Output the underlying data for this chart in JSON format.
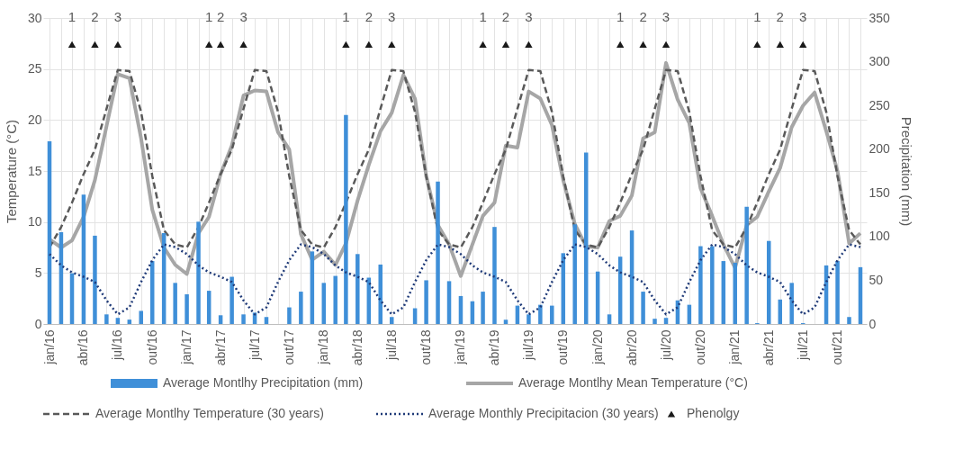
{
  "chart_data": {
    "type": "bar",
    "ylabel": "Temperature (°C)",
    "y2label": "Precipitation (mm)",
    "x": [
      "2016-01",
      "2016-02",
      "2016-03",
      "2016-04",
      "2016-05",
      "2016-06",
      "2016-07",
      "2016-08",
      "2016-09",
      "2016-10",
      "2016-11",
      "2016-12",
      "2017-01",
      "2017-02",
      "2017-03",
      "2017-04",
      "2017-05",
      "2017-06",
      "2017-07",
      "2017-08",
      "2017-09",
      "2017-10",
      "2017-11",
      "2017-12",
      "2018-01",
      "2018-02",
      "2018-03",
      "2018-04",
      "2018-05",
      "2018-06",
      "2018-07",
      "2018-08",
      "2018-09",
      "2018-10",
      "2018-11",
      "2018-12",
      "2019-01",
      "2019-02",
      "2019-03",
      "2019-04",
      "2019-05",
      "2019-06",
      "2019-07",
      "2019-08",
      "2019-09",
      "2019-10",
      "2019-11",
      "2019-12",
      "2020-01",
      "2020-02",
      "2020-03",
      "2020-04",
      "2020-05",
      "2020-06",
      "2020-07",
      "2020-08",
      "2020-09",
      "2020-10",
      "2020-11",
      "2020-12",
      "2021-01",
      "2021-02",
      "2021-03",
      "2021-04",
      "2021-05",
      "2021-06",
      "2021-07",
      "2021-08",
      "2021-09",
      "2021-10",
      "2021-11",
      "2021-12"
    ],
    "xlim": [
      "2016-01",
      "2021-12"
    ],
    "xticks": [
      {
        "value": "2016-01",
        "label": "jan/16"
      },
      {
        "value": "2016-02",
        "label": null
      },
      {
        "value": "2016-03",
        "label": null
      },
      {
        "value": "2016-04",
        "label": "abr/16"
      },
      {
        "value": "2016-05",
        "label": null
      },
      {
        "value": "2016-06",
        "label": null
      },
      {
        "value": "2016-07",
        "label": "jul/16"
      },
      {
        "value": "2016-08",
        "label": null
      },
      {
        "value": "2016-09",
        "label": null
      },
      {
        "value": "2016-10",
        "label": "out/16"
      },
      {
        "value": "2016-11",
        "label": null
      },
      {
        "value": "2016-12",
        "label": null
      },
      {
        "value": "2017-01",
        "label": "jan/17"
      },
      {
        "value": "2017-02",
        "label": null
      },
      {
        "value": "2017-03",
        "label": null
      },
      {
        "value": "2017-04",
        "label": "abr/17"
      },
      {
        "value": "2017-05",
        "label": null
      },
      {
        "value": "2017-06",
        "label": null
      },
      {
        "value": "2017-07",
        "label": "jul/17"
      },
      {
        "value": "2017-08",
        "label": null
      },
      {
        "value": "2017-09",
        "label": null
      },
      {
        "value": "2017-10",
        "label": "out/17"
      },
      {
        "value": "2017-11",
        "label": null
      },
      {
        "value": "2017-12",
        "label": null
      },
      {
        "value": "2018-01",
        "label": "jan/18"
      },
      {
        "value": "2018-02",
        "label": null
      },
      {
        "value": "2018-03",
        "label": null
      },
      {
        "value": "2018-04",
        "label": "abr/18"
      },
      {
        "value": "2018-05",
        "label": null
      },
      {
        "value": "2018-06",
        "label": null
      },
      {
        "value": "2018-07",
        "label": "jul/18"
      },
      {
        "value": "2018-08",
        "label": null
      },
      {
        "value": "2018-09",
        "label": null
      },
      {
        "value": "2018-10",
        "label": "out/18"
      },
      {
        "value": "2018-11",
        "label": null
      },
      {
        "value": "2018-12",
        "label": null
      },
      {
        "value": "2019-01",
        "label": "jan/19"
      },
      {
        "value": "2019-02",
        "label": null
      },
      {
        "value": "2019-03",
        "label": null
      },
      {
        "value": "2019-04",
        "label": "abr/19"
      },
      {
        "value": "2019-05",
        "label": null
      },
      {
        "value": "2019-06",
        "label": null
      },
      {
        "value": "2019-07",
        "label": "jul/19"
      },
      {
        "value": "2019-08",
        "label": null
      },
      {
        "value": "2019-09",
        "label": null
      },
      {
        "value": "2019-10",
        "label": "out/19"
      },
      {
        "value": "2019-11",
        "label": null
      },
      {
        "value": "2019-12",
        "label": null
      },
      {
        "value": "2020-01",
        "label": "jan/20"
      },
      {
        "value": "2020-02",
        "label": null
      },
      {
        "value": "2020-03",
        "label": null
      },
      {
        "value": "2020-04",
        "label": "abr/20"
      },
      {
        "value": "2020-05",
        "label": null
      },
      {
        "value": "2020-06",
        "label": null
      },
      {
        "value": "2020-07",
        "label": "jul/20"
      },
      {
        "value": "2020-08",
        "label": null
      },
      {
        "value": "2020-09",
        "label": null
      },
      {
        "value": "2020-10",
        "label": "out/20"
      },
      {
        "value": "2020-11",
        "label": null
      },
      {
        "value": "2020-12",
        "label": null
      },
      {
        "value": "2021-01",
        "label": "jan/21"
      },
      {
        "value": "2021-02",
        "label": null
      },
      {
        "value": "2021-03",
        "label": null
      },
      {
        "value": "2021-04",
        "label": "abr/21"
      },
      {
        "value": "2021-05",
        "label": null
      },
      {
        "value": "2021-06",
        "label": null
      },
      {
        "value": "2021-07",
        "label": "jul/21"
      },
      {
        "value": "2021-08",
        "label": null
      },
      {
        "value": "2021-09",
        "label": null
      },
      {
        "value": "2021-10",
        "label": "out/21"
      },
      {
        "value": "2021-11",
        "label": null
      },
      {
        "value": "2021-12",
        "label": null
      }
    ],
    "ylim": [
      0,
      30
    ],
    "yticks": [
      0,
      5,
      10,
      15,
      20,
      25,
      30
    ],
    "y2lim": [
      0,
      350
    ],
    "y2ticks": [
      0,
      50,
      100,
      150,
      200,
      250,
      300,
      350
    ],
    "grid": true,
    "legend": "bottom",
    "series": [
      {
        "name": "Average Montlhy Precipitation (mm)",
        "axis": "y2",
        "color": "#3f8fd8",
        "values": [
          209,
          105,
          58,
          148,
          101,
          11,
          7,
          5,
          15,
          72,
          104,
          47,
          34,
          117,
          38,
          10,
          54,
          11,
          13,
          8,
          0,
          19,
          37,
          83,
          47,
          55,
          239,
          80,
          53,
          68,
          8,
          0,
          18,
          50,
          163,
          49,
          32,
          26,
          37,
          111,
          5,
          21,
          11,
          22,
          21,
          81,
          114,
          196,
          60,
          11,
          77,
          107,
          37,
          6,
          7,
          27,
          22,
          89,
          89,
          72,
          70,
          134,
          1,
          95,
          28,
          47,
          1,
          0,
          67,
          72,
          8,
          65
        ]
      },
      {
        "name": "Average Montlhy Mean Temperature (°C)",
        "type": "line",
        "color": "#a6a6a6",
        "line_style": "solid",
        "values": [
          8.3,
          7.5,
          8.2,
          10.5,
          14.1,
          19.4,
          24.5,
          24.1,
          18.2,
          11.2,
          7.5,
          5.8,
          4.9,
          8.9,
          10.5,
          14.7,
          17.5,
          22.4,
          22.9,
          22.8,
          18.8,
          17.1,
          8.8,
          6.3,
          7.1,
          5.8,
          7.9,
          12.1,
          15.6,
          18.9,
          20.7,
          24.4,
          22.1,
          14.5,
          9.7,
          7.8,
          4.7,
          7.8,
          10.6,
          11.9,
          17.5,
          17.3,
          22.8,
          22.1,
          19.5,
          14.1,
          9.8,
          7.6,
          7.5,
          10.1,
          10.6,
          12.6,
          18.2,
          18.8,
          25.6,
          22.0,
          19.7,
          13.3,
          10.6,
          7.8,
          5.5,
          9.7,
          10.5,
          13.0,
          15.3,
          19.3,
          21.4,
          22.7,
          18.9,
          15.0,
          7.9,
          8.9
        ]
      },
      {
        "name": "Average Montlhy Temperature (30 years)",
        "type": "line",
        "color": "#595959",
        "line_style": "dashed",
        "values": [
          7.5,
          9.5,
          11.9,
          14.7,
          17.1,
          21.1,
          24.9,
          24.8,
          20.8,
          14.5,
          9.2,
          7.8,
          7.5,
          9.5,
          11.9,
          14.7,
          17.1,
          21.1,
          24.9,
          24.8,
          20.8,
          14.5,
          9.2,
          7.8,
          7.5,
          9.5,
          11.9,
          14.7,
          17.1,
          21.1,
          24.9,
          24.8,
          20.8,
          14.5,
          9.2,
          7.8,
          7.5,
          9.5,
          11.9,
          14.7,
          17.1,
          21.1,
          24.9,
          24.8,
          20.8,
          14.5,
          9.2,
          7.8,
          7.5,
          9.5,
          11.9,
          14.7,
          17.1,
          21.1,
          24.9,
          24.8,
          20.8,
          14.5,
          9.2,
          7.8,
          7.5,
          9.5,
          11.9,
          14.7,
          17.1,
          21.1,
          24.9,
          24.8,
          20.8,
          14.5,
          9.2,
          7.8
        ]
      },
      {
        "name": "Average Monthly Precipitacion (30 years)",
        "type": "line",
        "axis": "y2",
        "color": "#1f3a78",
        "line_style": "dotted",
        "values": [
          80,
          67,
          59,
          54,
          48,
          27,
          11,
          19,
          48,
          73,
          91,
          88,
          80,
          67,
          59,
          54,
          48,
          27,
          11,
          19,
          48,
          73,
          91,
          88,
          80,
          67,
          59,
          54,
          48,
          27,
          11,
          19,
          48,
          73,
          91,
          88,
          80,
          67,
          59,
          54,
          48,
          27,
          11,
          19,
          48,
          73,
          91,
          88,
          80,
          67,
          59,
          54,
          48,
          27,
          11,
          19,
          48,
          73,
          91,
          88,
          80,
          67,
          59,
          54,
          48,
          27,
          11,
          19,
          48,
          73,
          91,
          88
        ]
      },
      {
        "name": "Phenolgy",
        "type": "scatter",
        "marker": "triangle",
        "color": "#1a1a1a",
        "x": [
          "2016-03",
          "2016-05",
          "2016-07",
          "2017-03",
          "2017-04",
          "2017-06",
          "2018-03",
          "2018-05",
          "2018-07",
          "2019-03",
          "2019-05",
          "2019-07",
          "2020-03",
          "2020-05",
          "2020-07",
          "2021-03",
          "2021-05",
          "2021-07"
        ],
        "values": [
          27.4,
          27.4,
          27.4,
          27.4,
          27.4,
          27.4,
          27.4,
          27.4,
          27.4,
          27.4,
          27.4,
          27.4,
          27.4,
          27.4,
          27.4,
          27.4,
          27.4,
          27.4
        ]
      }
    ],
    "annotations": [
      "1",
      "2",
      "3",
      "1",
      "2",
      "3",
      "1",
      "2",
      "3",
      "1",
      "2",
      "3",
      "1",
      "2",
      "3",
      "1",
      "2",
      "3"
    ]
  }
}
